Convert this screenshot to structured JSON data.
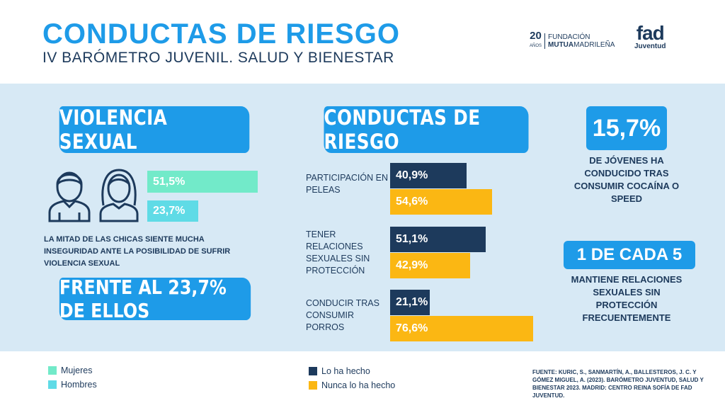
{
  "header": {
    "title": "CONDUCTAS DE RIESGO",
    "subtitle": "IV BARÓMETRO JUVENIL. SALUD Y BIENESTAR",
    "logo_mutua_num": "20",
    "logo_mutua_anos": "AÑOS",
    "logo_mutua_line1": "FUNDACIÓN",
    "logo_mutua_line2a": "MUTUA",
    "logo_mutua_line2b": "MADRILEÑA",
    "logo_fad": "fad",
    "logo_fad_sub": "Juventud"
  },
  "violencia": {
    "heading": "VIOLENCIA SEXUAL",
    "mujeres_value": "51,5%",
    "hombres_value": "23,7%",
    "mujeres_fraction": 0.515,
    "hombres_fraction": 0.237,
    "text": "LA MITAD DE LAS CHICAS SIENTE MUCHA INSEGURIDAD ANTE LA POSIBILIDAD DE SUFRIR VIOLENCIA SEXUAL",
    "banner": "FRENTE AL 23,7% DE ELLOS"
  },
  "conductas": {
    "heading": "CONDUCTAS DE RIESGO",
    "items": [
      {
        "label": "PARTICIPACIÓN EN PELEAS",
        "hecho": "40,9%",
        "nunca": "54,6%",
        "hecho_value": 40.9,
        "nunca_value": 54.6
      },
      {
        "label": "TENER RELACIONES SEXUALES SIN PROTECCIÓN",
        "hecho": "51,1%",
        "nunca": "42,9%",
        "hecho_value": 51.1,
        "nunca_value": 42.9
      },
      {
        "label": "CONDUCIR TRAS CONSUMIR PORROS",
        "hecho": "21,1%",
        "nunca": "76,6%",
        "hecho_value": 21.1,
        "nunca_value": 76.6
      }
    ]
  },
  "stats": {
    "stat1_value": "15,7%",
    "stat1_text": "DE JÓVENES HA CONDUCIDO TRAS CONSUMIR COCAÍNA O SPEED",
    "stat2_value": "1 DE CADA 5",
    "stat2_text": "MANTIENE RELACIONES SEXUALES SIN PROTECCIÓN FRECUENTEMENTE"
  },
  "legend": {
    "mujeres": "Mujeres",
    "hombres": "Hombres",
    "hecho": "Lo ha hecho",
    "nunca": "Nunca lo ha hecho"
  },
  "source": {
    "label": "FUENTE:",
    "text": "KURIC, S., SANMARTÍN, A., BALLESTEROS, J. C. Y GÓMEZ MIGUEL, A. (2023). BARÓMETRO JUVENTUD, SALUD Y BIENESTAR 2023. MADRID: CENTRO REINA SOFÍA DE FAD JUVENTUD."
  },
  "colors": {
    "brand_blue": "#1e9be8",
    "navy": "#1d3a5c",
    "yellow": "#fbb713",
    "mint": "#72eac9",
    "cyan": "#5fdbe6",
    "background": "#d7e9f5"
  },
  "icons": [
    "boy-icon",
    "girl-icon"
  ]
}
